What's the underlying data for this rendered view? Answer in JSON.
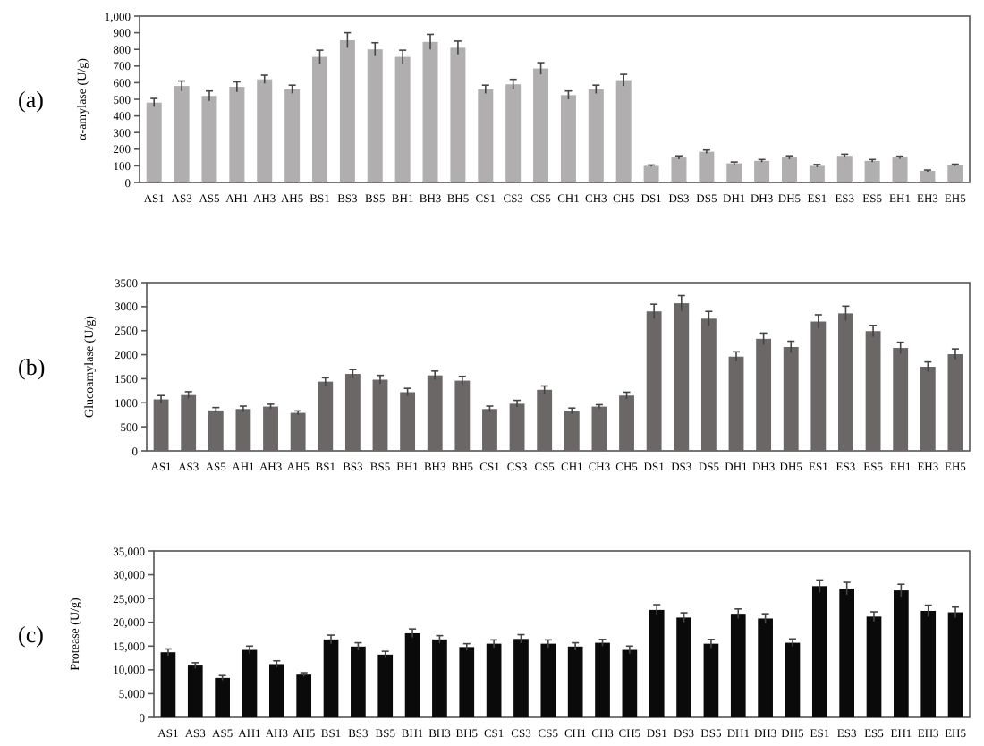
{
  "chart_data": [
    {
      "type": "bar",
      "title": "(a)",
      "ylabel": "α-amylase (U/g)",
      "categories": [
        "AS1",
        "AS3",
        "AS5",
        "AH1",
        "AH3",
        "AH5",
        "BS1",
        "BS3",
        "BS5",
        "BH1",
        "BH3",
        "BH5",
        "CS1",
        "CS3",
        "CS5",
        "CH1",
        "CH3",
        "CH5",
        "DS1",
        "DS3",
        "DS5",
        "DH1",
        "DH3",
        "DH5",
        "ES1",
        "ES3",
        "ES5",
        "EH1",
        "EH3",
        "EH5"
      ],
      "values": [
        480,
        580,
        520,
        575,
        620,
        560,
        755,
        855,
        800,
        755,
        845,
        810,
        560,
        590,
        685,
        525,
        560,
        615,
        100,
        150,
        185,
        115,
        130,
        150,
        100,
        160,
        130,
        150,
        70,
        105
      ],
      "errors": [
        25,
        30,
        30,
        30,
        25,
        25,
        40,
        45,
        40,
        40,
        45,
        40,
        25,
        30,
        35,
        25,
        25,
        35,
        5,
        10,
        10,
        8,
        8,
        10,
        8,
        10,
        8,
        8,
        5,
        5
      ],
      "color": "#b0aeae",
      "ylim": [
        0,
        1000
      ],
      "yticks": [
        0,
        100,
        200,
        300,
        400,
        500,
        600,
        700,
        800,
        900,
        {
          "value": 1000,
          "label": "1,000"
        }
      ]
    },
    {
      "type": "bar",
      "title": "(b)",
      "ylabel": "Glucoamylase (U/g)",
      "categories": [
        "AS1",
        "AS3",
        "AS5",
        "AH1",
        "AH3",
        "AH5",
        "BS1",
        "BS3",
        "BS5",
        "BH1",
        "BH3",
        "BH5",
        "CS1",
        "CS3",
        "CS5",
        "CH1",
        "CH3",
        "CH5",
        "DS1",
        "DS3",
        "DS5",
        "DH1",
        "DH3",
        "DH5",
        "ES1",
        "ES3",
        "ES5",
        "EH1",
        "EH3",
        "EH5"
      ],
      "values": [
        1070,
        1160,
        840,
        870,
        920,
        790,
        1440,
        1600,
        1480,
        1220,
        1570,
        1460,
        870,
        980,
        1270,
        830,
        920,
        1150,
        2900,
        3070,
        2750,
        1960,
        2330,
        2160,
        2690,
        2860,
        2490,
        2140,
        1750,
        2010
      ],
      "errors": [
        80,
        70,
        60,
        60,
        50,
        40,
        80,
        90,
        90,
        80,
        90,
        90,
        60,
        70,
        80,
        60,
        40,
        70,
        150,
        160,
        150,
        100,
        120,
        120,
        140,
        150,
        120,
        120,
        100,
        110
      ],
      "color": "#6b6767",
      "ylim": [
        0,
        3500
      ],
      "yticks": [
        0,
        500,
        1000,
        1500,
        2000,
        2500,
        3000,
        3500
      ]
    },
    {
      "type": "bar",
      "title": "(c)",
      "ylabel": "Protease (U/g)",
      "categories": [
        "AS1",
        "AS3",
        "AS5",
        "AH1",
        "AH3",
        "AH5",
        "BS1",
        "BS3",
        "BS5",
        "BH1",
        "BH3",
        "BH5",
        "CS1",
        "CS3",
        "CS5",
        "CH1",
        "CH3",
        "CH5",
        "DS1",
        "DS3",
        "DS5",
        "DH1",
        "DH3",
        "DH5",
        "ES1",
        "ES3",
        "ES5",
        "EH1",
        "EH3",
        "EH5"
      ],
      "values": [
        13700,
        10900,
        8300,
        14200,
        11200,
        9000,
        16400,
        14900,
        13200,
        17700,
        16400,
        14800,
        15500,
        16500,
        15500,
        14900,
        15700,
        14200,
        22600,
        21000,
        15500,
        21800,
        20800,
        15700,
        27600,
        27100,
        21200,
        26700,
        22400,
        22100
      ],
      "errors": [
        700,
        600,
        500,
        800,
        700,
        400,
        900,
        800,
        700,
        900,
        800,
        700,
        800,
        900,
        800,
        800,
        700,
        800,
        1100,
        1000,
        900,
        1000,
        1000,
        800,
        1300,
        1300,
        1000,
        1300,
        1200,
        1100
      ],
      "color": "#0a0a0a",
      "ylim": [
        0,
        35000
      ],
      "yticks": [
        0,
        {
          "value": 5000,
          "label": "5,000"
        },
        {
          "value": 10000,
          "label": "10,000"
        },
        {
          "value": 15000,
          "label": "15,000"
        },
        {
          "value": 20000,
          "label": "20,000"
        },
        {
          "value": 25000,
          "label": "25,000"
        },
        {
          "value": 30000,
          "label": "30,000"
        },
        {
          "value": 35000,
          "label": "35,000"
        }
      ]
    }
  ]
}
